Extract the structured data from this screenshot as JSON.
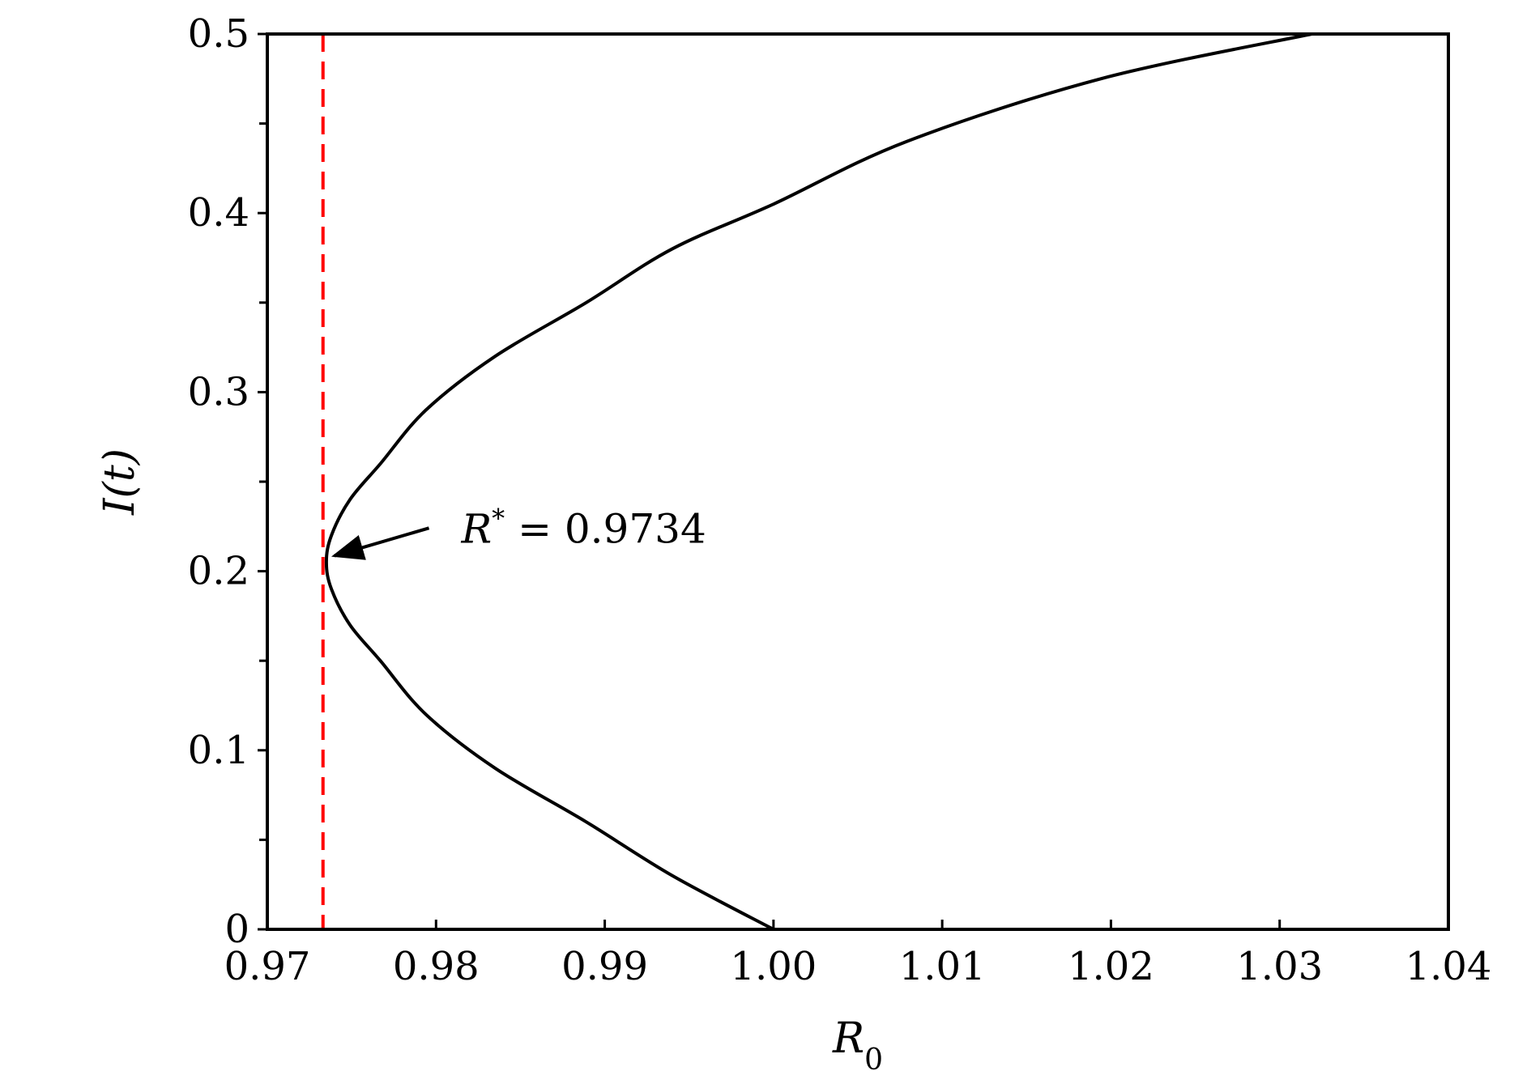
{
  "chart_data": {
    "type": "line",
    "title": "",
    "xlabel": "R",
    "xlabel_sub": "0",
    "ylabel": "I(t)",
    "xlim": [
      0.97,
      1.04
    ],
    "ylim": [
      0,
      0.5
    ],
    "grid": false,
    "x_ticks": [
      0.97,
      0.98,
      0.99,
      1.0,
      1.01,
      1.02,
      1.03,
      1.04
    ],
    "x_tick_labels": [
      "0.97",
      "0.98",
      "0.99",
      "1.00",
      "1.01",
      "1.02",
      "1.03",
      "1.04"
    ],
    "y_ticks": [
      0,
      0.1,
      0.2,
      0.3,
      0.4,
      0.5
    ],
    "y_tick_labels": [
      "0",
      "0.1",
      "0.2",
      "0.3",
      "0.4",
      "0.5"
    ],
    "y_minor_ticks": [
      0.05,
      0.15,
      0.25,
      0.35,
      0.45
    ],
    "series": [
      {
        "color": "#000000",
        "style": "solid",
        "x": [
          1.0,
          0.994,
          0.9889,
          0.9835,
          0.9794,
          0.9767,
          0.9749,
          0.9738,
          0.9735,
          0.9738,
          0.9749,
          0.9767,
          0.9794,
          0.9835,
          0.9889,
          0.994,
          1.0,
          1.0079,
          1.0194,
          1.0319
        ],
        "y": [
          0.0,
          0.03,
          0.06,
          0.09,
          0.12,
          0.15,
          0.17,
          0.19,
          0.205,
          0.22,
          0.24,
          0.26,
          0.29,
          0.32,
          0.35,
          0.38,
          0.405,
          0.44,
          0.475,
          0.5
        ]
      }
    ],
    "reference_lines": [
      {
        "orientation": "vertical",
        "x": 0.9733,
        "color": "#ff0000",
        "style": "dashed"
      }
    ],
    "annotation": {
      "text_prefix": "R",
      "text_sup": "*",
      "text_value": " = 0.9734",
      "target": [
        0.9734,
        0.205
      ],
      "text_anchor": [
        0.9815,
        0.225
      ]
    }
  }
}
